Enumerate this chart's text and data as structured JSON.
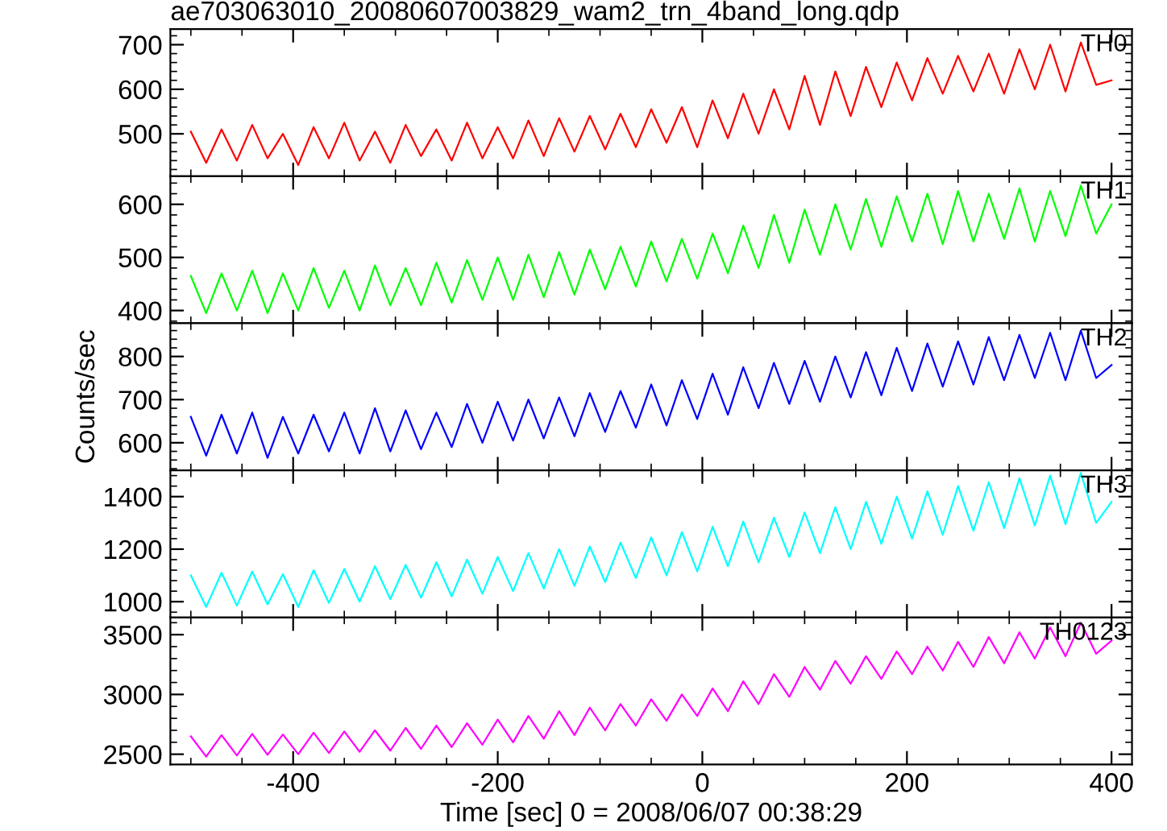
{
  "chart_data": [
    {
      "type": "line",
      "title": "ae703063010_20080607003829_wam2_trn_4band_long.qdp",
      "x": [
        -500,
        -485,
        -470,
        -455,
        -440,
        -425,
        -410,
        -395,
        -380,
        -365,
        -350,
        -335,
        -320,
        -305,
        -290,
        -275,
        -260,
        -245,
        -230,
        -215,
        -200,
        -185,
        -170,
        -155,
        -140,
        -125,
        -110,
        -95,
        -80,
        -65,
        -50,
        -35,
        -20,
        -5,
        10,
        25,
        40,
        55,
        70,
        85,
        100,
        115,
        130,
        145,
        160,
        175,
        190,
        205,
        220,
        235,
        250,
        265,
        280,
        295,
        310,
        325,
        340,
        355,
        370,
        385,
        400
      ],
      "xlim": [
        -520,
        420
      ],
      "xticks": [
        -400,
        -200,
        0,
        200,
        400
      ],
      "ylim": [
        405,
        735
      ],
      "yticks": [
        500,
        600,
        700
      ],
      "tick_labels": "y",
      "series": [
        {
          "name": "TH0",
          "color": "#ff0000",
          "values": [
            505,
            435,
            510,
            440,
            520,
            445,
            500,
            430,
            515,
            445,
            525,
            440,
            505,
            435,
            520,
            450,
            510,
            440,
            525,
            445,
            515,
            445,
            530,
            450,
            535,
            460,
            540,
            465,
            545,
            470,
            555,
            480,
            560,
            470,
            575,
            490,
            590,
            500,
            600,
            510,
            630,
            520,
            640,
            540,
            650,
            560,
            660,
            575,
            670,
            590,
            675,
            595,
            680,
            590,
            690,
            600,
            700,
            595,
            705,
            610,
            620
          ]
        }
      ]
    },
    {
      "type": "line",
      "x": [
        -500,
        -485,
        -470,
        -455,
        -440,
        -425,
        -410,
        -395,
        -380,
        -365,
        -350,
        -335,
        -320,
        -305,
        -290,
        -275,
        -260,
        -245,
        -230,
        -215,
        -200,
        -185,
        -170,
        -155,
        -140,
        -125,
        -110,
        -95,
        -80,
        -65,
        -50,
        -35,
        -20,
        -5,
        10,
        25,
        40,
        55,
        70,
        85,
        100,
        115,
        130,
        145,
        160,
        175,
        190,
        205,
        220,
        235,
        250,
        265,
        280,
        295,
        310,
        325,
        340,
        355,
        370,
        385,
        400
      ],
      "xlim": [
        -520,
        420
      ],
      "xticks": [
        -400,
        -200,
        0,
        200,
        400
      ],
      "ylim": [
        376,
        653
      ],
      "yticks": [
        400,
        500,
        600
      ],
      "tick_labels": "y",
      "series": [
        {
          "name": "TH1",
          "color": "#00ff00",
          "values": [
            465,
            395,
            470,
            400,
            475,
            395,
            470,
            400,
            480,
            405,
            475,
            400,
            485,
            410,
            480,
            410,
            490,
            415,
            495,
            420,
            500,
            420,
            505,
            425,
            510,
            430,
            515,
            440,
            520,
            445,
            530,
            455,
            535,
            460,
            545,
            470,
            560,
            480,
            580,
            490,
            590,
            505,
            600,
            515,
            610,
            520,
            615,
            530,
            620,
            525,
            625,
            530,
            620,
            535,
            630,
            530,
            625,
            540,
            635,
            545,
            600
          ]
        }
      ]
    },
    {
      "type": "line",
      "ylabel": "Counts/sec",
      "x": [
        -500,
        -485,
        -470,
        -455,
        -440,
        -425,
        -410,
        -395,
        -380,
        -365,
        -350,
        -335,
        -320,
        -305,
        -290,
        -275,
        -260,
        -245,
        -230,
        -215,
        -200,
        -185,
        -170,
        -155,
        -140,
        -125,
        -110,
        -95,
        -80,
        -65,
        -50,
        -35,
        -20,
        -5,
        10,
        25,
        40,
        55,
        70,
        85,
        100,
        115,
        130,
        145,
        160,
        175,
        190,
        205,
        220,
        235,
        250,
        265,
        280,
        295,
        310,
        325,
        340,
        355,
        370,
        385,
        400
      ],
      "xlim": [
        -520,
        420
      ],
      "xticks": [
        -400,
        -200,
        0,
        200,
        400
      ],
      "ylim": [
        536,
        877
      ],
      "yticks": [
        600,
        700,
        800
      ],
      "tick_labels": "y",
      "series": [
        {
          "name": "TH2",
          "color": "#0000ff",
          "values": [
            660,
            570,
            665,
            575,
            670,
            565,
            660,
            575,
            665,
            580,
            670,
            575,
            680,
            580,
            675,
            585,
            670,
            590,
            690,
            600,
            695,
            605,
            700,
            610,
            705,
            615,
            715,
            625,
            720,
            635,
            735,
            640,
            745,
            655,
            760,
            665,
            775,
            680,
            785,
            690,
            790,
            695,
            800,
            705,
            810,
            710,
            820,
            720,
            830,
            730,
            835,
            735,
            845,
            745,
            850,
            750,
            855,
            745,
            860,
            750,
            780
          ]
        }
      ]
    },
    {
      "type": "line",
      "x": [
        -500,
        -485,
        -470,
        -455,
        -440,
        -425,
        -410,
        -395,
        -380,
        -365,
        -350,
        -335,
        -320,
        -305,
        -290,
        -275,
        -260,
        -245,
        -230,
        -215,
        -200,
        -185,
        -170,
        -155,
        -140,
        -125,
        -110,
        -95,
        -80,
        -65,
        -50,
        -35,
        -20,
        -5,
        10,
        25,
        40,
        55,
        70,
        85,
        100,
        115,
        130,
        145,
        160,
        175,
        190,
        205,
        220,
        235,
        250,
        265,
        280,
        295,
        310,
        325,
        340,
        355,
        370,
        385,
        400
      ],
      "xlim": [
        -520,
        420
      ],
      "xticks": [
        -400,
        -200,
        0,
        200,
        400
      ],
      "ylim": [
        940,
        1500
      ],
      "yticks": [
        1000,
        1200,
        1400
      ],
      "tick_labels": "y",
      "series": [
        {
          "name": "TH3",
          "color": "#00ffff",
          "values": [
            1100,
            980,
            1110,
            985,
            1115,
            990,
            1105,
            980,
            1120,
            995,
            1125,
            1000,
            1135,
            1010,
            1140,
            1015,
            1150,
            1020,
            1160,
            1030,
            1170,
            1040,
            1185,
            1050,
            1200,
            1060,
            1210,
            1075,
            1225,
            1090,
            1245,
            1100,
            1265,
            1115,
            1285,
            1135,
            1305,
            1150,
            1320,
            1170,
            1340,
            1185,
            1360,
            1200,
            1380,
            1220,
            1400,
            1240,
            1420,
            1255,
            1440,
            1270,
            1455,
            1280,
            1470,
            1290,
            1480,
            1295,
            1490,
            1300,
            1380
          ]
        }
      ]
    },
    {
      "type": "line",
      "xlabel": "Time [sec] 0 = 2008/06/07 00:38:29",
      "x": [
        -500,
        -485,
        -470,
        -455,
        -440,
        -425,
        -410,
        -395,
        -380,
        -365,
        -350,
        -335,
        -320,
        -305,
        -290,
        -275,
        -260,
        -245,
        -230,
        -215,
        -200,
        -185,
        -170,
        -155,
        -140,
        -125,
        -110,
        -95,
        -80,
        -65,
        -50,
        -35,
        -20,
        -5,
        10,
        25,
        40,
        55,
        70,
        85,
        100,
        115,
        130,
        145,
        160,
        175,
        190,
        205,
        220,
        235,
        250,
        265,
        280,
        295,
        310,
        325,
        340,
        355,
        370,
        385,
        400
      ],
      "xlim": [
        -520,
        420
      ],
      "xticks": [
        -400,
        -200,
        0,
        200,
        400
      ],
      "ylim": [
        2414,
        3644
      ],
      "yticks": [
        2500,
        3000,
        3500
      ],
      "series": [
        {
          "name": "TH0123",
          "color": "#ff00ff",
          "values": [
            2650,
            2480,
            2660,
            2490,
            2670,
            2495,
            2665,
            2500,
            2680,
            2510,
            2690,
            2520,
            2700,
            2530,
            2720,
            2545,
            2740,
            2560,
            2760,
            2580,
            2790,
            2600,
            2820,
            2630,
            2860,
            2660,
            2890,
            2700,
            2920,
            2740,
            2960,
            2780,
            3000,
            2820,
            3050,
            2860,
            3110,
            2920,
            3170,
            2980,
            3230,
            3040,
            3280,
            3090,
            3320,
            3130,
            3360,
            3170,
            3400,
            3200,
            3440,
            3230,
            3480,
            3260,
            3520,
            3300,
            3560,
            3320,
            3600,
            3340,
            3450
          ]
        }
      ]
    }
  ]
}
